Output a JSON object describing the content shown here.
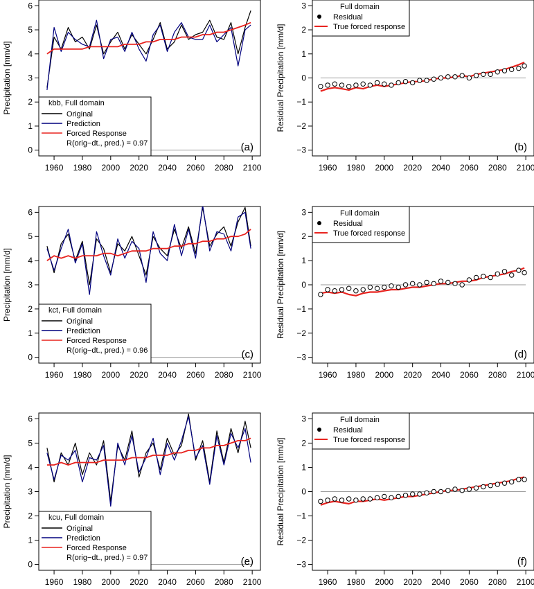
{
  "colors": {
    "original": "#000000",
    "prediction": "#00007f",
    "forced": "#e8231f",
    "residual_marker": "#000000",
    "zero_line": "#999999"
  },
  "chart_data": [
    {
      "panel": "(a)",
      "type": "line",
      "ylabel": "Precipitation [mm/d]",
      "xlim": [
        1955,
        2100
      ],
      "ylim": [
        0,
        6
      ],
      "xticks": [
        "1960",
        "1980",
        "2000",
        "2020",
        "2040",
        "2060",
        "2080",
        "2100"
      ],
      "yticks": [
        "0",
        "1",
        "2",
        "3",
        "4",
        "5",
        "6"
      ],
      "legend": {
        "placement": "bottom-left",
        "title": "kbb, Full domain",
        "entries": [
          "Original",
          "Prediction",
          "Forced Response"
        ],
        "note": "R(orig−dt., pred.) = 0.97"
      },
      "x": [
        1955,
        1960,
        1965,
        1970,
        1975,
        1980,
        1985,
        1990,
        1995,
        2000,
        2005,
        2010,
        2015,
        2020,
        2025,
        2030,
        2035,
        2040,
        2045,
        2050,
        2055,
        2060,
        2065,
        2070,
        2075,
        2080,
        2085,
        2090,
        2095,
        2099
      ],
      "series": [
        {
          "name": "Original",
          "values": [
            2.6,
            4.7,
            4.2,
            5.1,
            4.5,
            4.7,
            4.2,
            5.2,
            4.0,
            4.5,
            4.9,
            4.2,
            4.8,
            4.4,
            4.0,
            4.6,
            5.3,
            4.2,
            4.5,
            5.2,
            4.6,
            4.8,
            4.9,
            5.4,
            4.7,
            4.6,
            5.3,
            4.0,
            5.1,
            5.8
          ]
        },
        {
          "name": "Prediction",
          "values": [
            2.5,
            5.1,
            4.1,
            4.9,
            4.6,
            4.4,
            4.3,
            5.4,
            3.8,
            4.6,
            4.7,
            4.1,
            4.9,
            4.2,
            3.7,
            4.8,
            5.2,
            4.1,
            4.9,
            5.3,
            4.7,
            4.6,
            4.6,
            5.2,
            4.5,
            4.8,
            5.1,
            3.5,
            5.0,
            5.2
          ]
        },
        {
          "name": "Forced Response",
          "values": [
            4.0,
            4.2,
            4.2,
            4.2,
            4.2,
            4.2,
            4.3,
            4.3,
            4.3,
            4.3,
            4.3,
            4.4,
            4.4,
            4.4,
            4.5,
            4.5,
            4.6,
            4.6,
            4.6,
            4.7,
            4.7,
            4.7,
            4.8,
            4.8,
            4.9,
            4.9,
            5.0,
            5.1,
            5.2,
            5.3
          ]
        }
      ]
    },
    {
      "panel": "(b)",
      "type": "scatter",
      "ylabel": "Residual Precipitation [mm/d]",
      "xlim": [
        1955,
        2100
      ],
      "ylim": [
        -3,
        3
      ],
      "xticks": [
        "1960",
        "1980",
        "2000",
        "2020",
        "2040",
        "2060",
        "2080",
        "2100"
      ],
      "yticks": [
        "−3",
        "−2",
        "−1",
        "0",
        "1",
        "2",
        "3"
      ],
      "legend": {
        "placement": "top-left",
        "title": "Full domain",
        "entries": [
          "Residual",
          "True forced response"
        ]
      },
      "x": [
        1955,
        1960,
        1965,
        1970,
        1975,
        1980,
        1985,
        1990,
        1995,
        2000,
        2005,
        2010,
        2015,
        2020,
        2025,
        2030,
        2035,
        2040,
        2045,
        2050,
        2055,
        2060,
        2065,
        2070,
        2075,
        2080,
        2085,
        2090,
        2095,
        2099
      ],
      "series": [
        {
          "name": "Residual",
          "values": [
            -0.35,
            -0.3,
            -0.25,
            -0.3,
            -0.35,
            -0.3,
            -0.25,
            -0.3,
            -0.2,
            -0.25,
            -0.3,
            -0.2,
            -0.15,
            -0.2,
            -0.1,
            -0.1,
            -0.05,
            0.0,
            0.05,
            0.05,
            0.1,
            0.0,
            0.1,
            0.15,
            0.15,
            0.25,
            0.3,
            0.35,
            0.4,
            0.5
          ]
        },
        {
          "name": "True forced response",
          "values": [
            -0.55,
            -0.45,
            -0.4,
            -0.45,
            -0.5,
            -0.4,
            -0.45,
            -0.35,
            -0.3,
            -0.35,
            -0.3,
            -0.25,
            -0.2,
            -0.15,
            -0.15,
            -0.1,
            -0.05,
            0.0,
            0.0,
            0.05,
            0.1,
            0.05,
            0.15,
            0.2,
            0.25,
            0.3,
            0.35,
            0.45,
            0.55,
            0.65
          ]
        }
      ]
    },
    {
      "panel": "(c)",
      "type": "line",
      "ylabel": "Precipitation [mm/d]",
      "xlim": [
        1955,
        2100
      ],
      "ylim": [
        0,
        6
      ],
      "xticks": [
        "1960",
        "1980",
        "2000",
        "2020",
        "2040",
        "2060",
        "2080",
        "2100"
      ],
      "yticks": [
        "0",
        "1",
        "2",
        "3",
        "4",
        "5",
        "6"
      ],
      "legend": {
        "placement": "bottom-left",
        "title": "kct, Full domain",
        "entries": [
          "Original",
          "Prediction",
          "Forced Response"
        ],
        "note": "R(orig−dt., pred.) = 0.96"
      },
      "x": [
        1955,
        1960,
        1965,
        1970,
        1975,
        1980,
        1985,
        1990,
        1995,
        2000,
        2005,
        2010,
        2015,
        2020,
        2025,
        2030,
        2035,
        2040,
        2045,
        2050,
        2055,
        2060,
        2065,
        2070,
        2075,
        2080,
        2085,
        2090,
        2095,
        2099
      ],
      "series": [
        {
          "name": "Original",
          "values": [
            4.6,
            3.5,
            4.7,
            5.1,
            4.0,
            4.8,
            3.0,
            4.9,
            4.5,
            3.5,
            4.7,
            4.4,
            5.0,
            4.2,
            3.4,
            5.0,
            4.5,
            4.2,
            5.3,
            4.5,
            5.4,
            4.3,
            6.2,
            4.6,
            5.1,
            5.4,
            4.6,
            5.6,
            6.2,
            4.6
          ]
        },
        {
          "name": "Prediction",
          "values": [
            4.5,
            3.6,
            4.5,
            5.3,
            3.9,
            4.7,
            2.6,
            5.2,
            4.2,
            3.4,
            4.9,
            4.1,
            4.8,
            4.5,
            3.1,
            5.2,
            4.3,
            4.0,
            5.5,
            4.2,
            5.3,
            4.1,
            6.3,
            4.4,
            5.2,
            5.1,
            4.4,
            5.8,
            6.0,
            4.5
          ]
        },
        {
          "name": "Forced Response",
          "values": [
            4.0,
            4.2,
            4.1,
            4.2,
            4.1,
            4.2,
            4.2,
            4.2,
            4.3,
            4.3,
            4.2,
            4.3,
            4.4,
            4.4,
            4.4,
            4.5,
            4.5,
            4.5,
            4.6,
            4.6,
            4.7,
            4.7,
            4.8,
            4.8,
            4.9,
            4.9,
            5.0,
            5.0,
            5.1,
            5.3
          ]
        }
      ]
    },
    {
      "panel": "(d)",
      "type": "scatter",
      "ylabel": "Residual Precipitation [mm/d]",
      "xlim": [
        1955,
        2100
      ],
      "ylim": [
        -3,
        3
      ],
      "xticks": [
        "1960",
        "1980",
        "2000",
        "2020",
        "2040",
        "2060",
        "2080",
        "2100"
      ],
      "yticks": [
        "−3",
        "−2",
        "−1",
        "0",
        "1",
        "2",
        "3"
      ],
      "legend": {
        "placement": "top-left",
        "title": "Full domain",
        "entries": [
          "Residual",
          "True forced response"
        ]
      },
      "x": [
        1955,
        1960,
        1965,
        1970,
        1975,
        1980,
        1985,
        1990,
        1995,
        2000,
        2005,
        2010,
        2015,
        2020,
        2025,
        2030,
        2035,
        2040,
        2045,
        2050,
        2055,
        2060,
        2065,
        2070,
        2075,
        2080,
        2085,
        2090,
        2095,
        2099
      ],
      "series": [
        {
          "name": "Residual",
          "values": [
            -0.4,
            -0.2,
            -0.25,
            -0.2,
            -0.15,
            -0.25,
            -0.2,
            -0.1,
            -0.15,
            -0.1,
            -0.05,
            -0.1,
            0.0,
            0.05,
            0.0,
            0.1,
            0.05,
            0.15,
            0.1,
            0.05,
            0.0,
            0.2,
            0.3,
            0.35,
            0.3,
            0.45,
            0.55,
            0.4,
            0.6,
            0.5
          ]
        },
        {
          "name": "True forced response",
          "values": [
            -0.35,
            -0.3,
            -0.35,
            -0.3,
            -0.4,
            -0.45,
            -0.35,
            -0.3,
            -0.3,
            -0.25,
            -0.2,
            -0.2,
            -0.15,
            -0.1,
            -0.1,
            -0.05,
            0.0,
            0.05,
            0.05,
            0.1,
            0.15,
            0.15,
            0.2,
            0.3,
            0.35,
            0.4,
            0.45,
            0.55,
            0.6,
            0.7
          ]
        }
      ]
    },
    {
      "panel": "(e)",
      "type": "line",
      "ylabel": "Precipitation [mm/d]",
      "xlim": [
        1955,
        2100
      ],
      "ylim": [
        0,
        6
      ],
      "xticks": [
        "1960",
        "1980",
        "2000",
        "2020",
        "2040",
        "2060",
        "2080",
        "2100"
      ],
      "yticks": [
        "0",
        "1",
        "2",
        "3",
        "4",
        "5",
        "6"
      ],
      "legend": {
        "placement": "bottom-left",
        "title": "kcu, Full domain",
        "entries": [
          "Original",
          "Prediction",
          "Forced Response"
        ],
        "note": "R(orig−dt., pred.) = 0.97"
      },
      "x": [
        1955,
        1960,
        1965,
        1970,
        1975,
        1980,
        1985,
        1990,
        1995,
        2000,
        2005,
        2010,
        2015,
        2020,
        2025,
        2030,
        2035,
        2040,
        2045,
        2050,
        2055,
        2060,
        2065,
        2070,
        2075,
        2080,
        2085,
        2090,
        2095,
        2099
      ],
      "series": [
        {
          "name": "Original",
          "values": [
            4.8,
            3.4,
            4.6,
            4.1,
            5.0,
            3.7,
            4.6,
            4.1,
            5.1,
            2.6,
            4.9,
            4.3,
            5.5,
            3.6,
            4.6,
            5.0,
            3.9,
            5.2,
            4.5,
            4.9,
            6.2,
            4.3,
            5.1,
            3.4,
            5.5,
            4.2,
            5.6,
            4.6,
            5.9,
            4.8
          ]
        },
        {
          "name": "Prediction",
          "values": [
            4.6,
            3.5,
            4.5,
            4.3,
            4.7,
            3.4,
            4.4,
            4.3,
            4.9,
            2.4,
            5.0,
            4.1,
            5.3,
            3.8,
            4.4,
            5.2,
            3.7,
            5.0,
            4.3,
            5.1,
            6.1,
            4.4,
            4.9,
            3.3,
            5.3,
            4.1,
            5.4,
            4.8,
            5.6,
            4.2
          ]
        },
        {
          "name": "Forced Response",
          "values": [
            4.1,
            4.1,
            4.2,
            4.1,
            4.2,
            4.2,
            4.2,
            4.2,
            4.3,
            4.3,
            4.3,
            4.3,
            4.4,
            4.4,
            4.4,
            4.5,
            4.5,
            4.5,
            4.6,
            4.6,
            4.7,
            4.7,
            4.8,
            4.8,
            4.9,
            4.9,
            5.0,
            5.1,
            5.1,
            5.2
          ]
        }
      ]
    },
    {
      "panel": "(f)",
      "type": "scatter",
      "ylabel": "Residual Precipitation [mm/d]",
      "xlim": [
        1955,
        2100
      ],
      "ylim": [
        -3,
        3
      ],
      "xticks": [
        "1960",
        "1980",
        "2000",
        "2020",
        "2040",
        "2060",
        "2080",
        "2100"
      ],
      "yticks": [
        "−3",
        "−2",
        "−1",
        "0",
        "1",
        "2",
        "3"
      ],
      "legend": {
        "placement": "top-left",
        "title": "Full domain",
        "entries": [
          "Residual",
          "True forced response"
        ]
      },
      "x": [
        1955,
        1960,
        1965,
        1970,
        1975,
        1980,
        1985,
        1990,
        1995,
        2000,
        2005,
        2010,
        2015,
        2020,
        2025,
        2030,
        2035,
        2040,
        2045,
        2050,
        2055,
        2060,
        2065,
        2070,
        2075,
        2080,
        2085,
        2090,
        2095,
        2099
      ],
      "series": [
        {
          "name": "Residual",
          "values": [
            -0.4,
            -0.35,
            -0.3,
            -0.35,
            -0.3,
            -0.35,
            -0.3,
            -0.3,
            -0.25,
            -0.2,
            -0.25,
            -0.2,
            -0.15,
            -0.1,
            -0.1,
            -0.05,
            0.0,
            0.0,
            0.05,
            0.1,
            0.05,
            0.1,
            0.15,
            0.2,
            0.25,
            0.3,
            0.35,
            0.4,
            0.5,
            0.5
          ]
        },
        {
          "name": "True forced response",
          "values": [
            -0.55,
            -0.45,
            -0.4,
            -0.45,
            -0.5,
            -0.4,
            -0.4,
            -0.35,
            -0.3,
            -0.35,
            -0.3,
            -0.25,
            -0.2,
            -0.2,
            -0.15,
            -0.1,
            -0.05,
            0.0,
            0.05,
            0.05,
            0.1,
            0.15,
            0.2,
            0.25,
            0.3,
            0.35,
            0.4,
            0.45,
            0.55,
            0.6
          ]
        }
      ]
    }
  ]
}
